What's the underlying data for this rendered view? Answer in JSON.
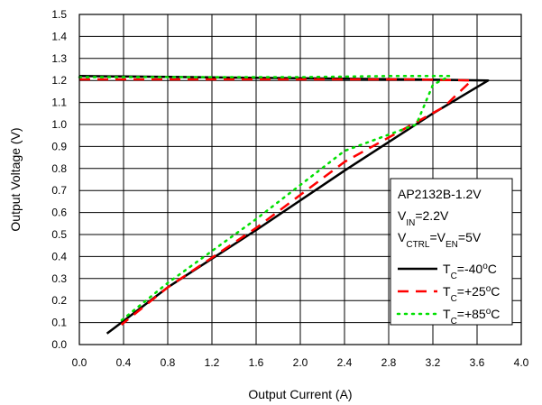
{
  "chart_data": {
    "type": "line",
    "xlabel": "Output Current (A)",
    "ylabel": "Output Voltage (V)",
    "xlim": [
      0.0,
      4.0
    ],
    "ylim": [
      0.0,
      1.5
    ],
    "x_ticks": [
      "0.0",
      "0.4",
      "0.8",
      "1.2",
      "1.6",
      "2.0",
      "2.4",
      "2.8",
      "3.2",
      "3.6",
      "4.0"
    ],
    "y_ticks": [
      "0.0",
      "0.1",
      "0.2",
      "0.3",
      "0.4",
      "0.5",
      "0.6",
      "0.7",
      "0.8",
      "0.9",
      "1.0",
      "1.1",
      "1.2",
      "1.3",
      "1.4",
      "1.5"
    ],
    "grid": true,
    "legend_placement": "bottom-right",
    "annotation": {
      "device": "AP2132B-1.2V",
      "vin_prefix": "V",
      "vin_sub": "IN",
      "vin_value": "=2.2V",
      "vctrl_prefix": "V",
      "vctrl_sub": "CTRL",
      "ven_mid": "=V",
      "ven_sub": "EN",
      "ven_value": "=5V"
    },
    "series": [
      {
        "name": "T_C=-40°C",
        "label_prefix": "T",
        "label_sub": "C",
        "label_value": "=-40",
        "label_degree": "o",
        "label_unit": "C",
        "color": "#000000",
        "dash": "none",
        "x": [
          0.0,
          1.0,
          2.0,
          3.0,
          3.7,
          3.2,
          2.4,
          1.6,
          0.8,
          0.25
        ],
        "y": [
          1.22,
          1.215,
          1.21,
          1.205,
          1.2,
          1.05,
          0.79,
          0.52,
          0.26,
          0.05
        ]
      },
      {
        "name": "T_C=+25°C",
        "label_prefix": "T",
        "label_sub": "C",
        "label_value": "=+25",
        "label_degree": "o",
        "label_unit": "C",
        "color": "#ff0000",
        "dash": "12,8",
        "x": [
          0.0,
          1.0,
          2.0,
          3.0,
          3.55,
          3.3,
          2.4,
          1.6,
          0.8,
          0.38
        ],
        "y": [
          1.205,
          1.205,
          1.205,
          1.205,
          1.2,
          1.08,
          0.83,
          0.53,
          0.26,
          0.09
        ]
      },
      {
        "name": "T_C=+85°C",
        "label_prefix": "T",
        "label_sub": "C",
        "label_value": "=+85",
        "label_degree": "o",
        "label_unit": "C",
        "color": "#00e000",
        "dash": "2,6",
        "x": [
          0.0,
          1.0,
          2.0,
          2.8,
          3.35,
          3.2,
          3.05,
          2.4,
          1.6,
          0.8,
          0.38
        ],
        "y": [
          1.215,
          1.215,
          1.215,
          1.22,
          1.22,
          1.18,
          1.0,
          0.88,
          0.57,
          0.28,
          0.11
        ]
      }
    ]
  }
}
